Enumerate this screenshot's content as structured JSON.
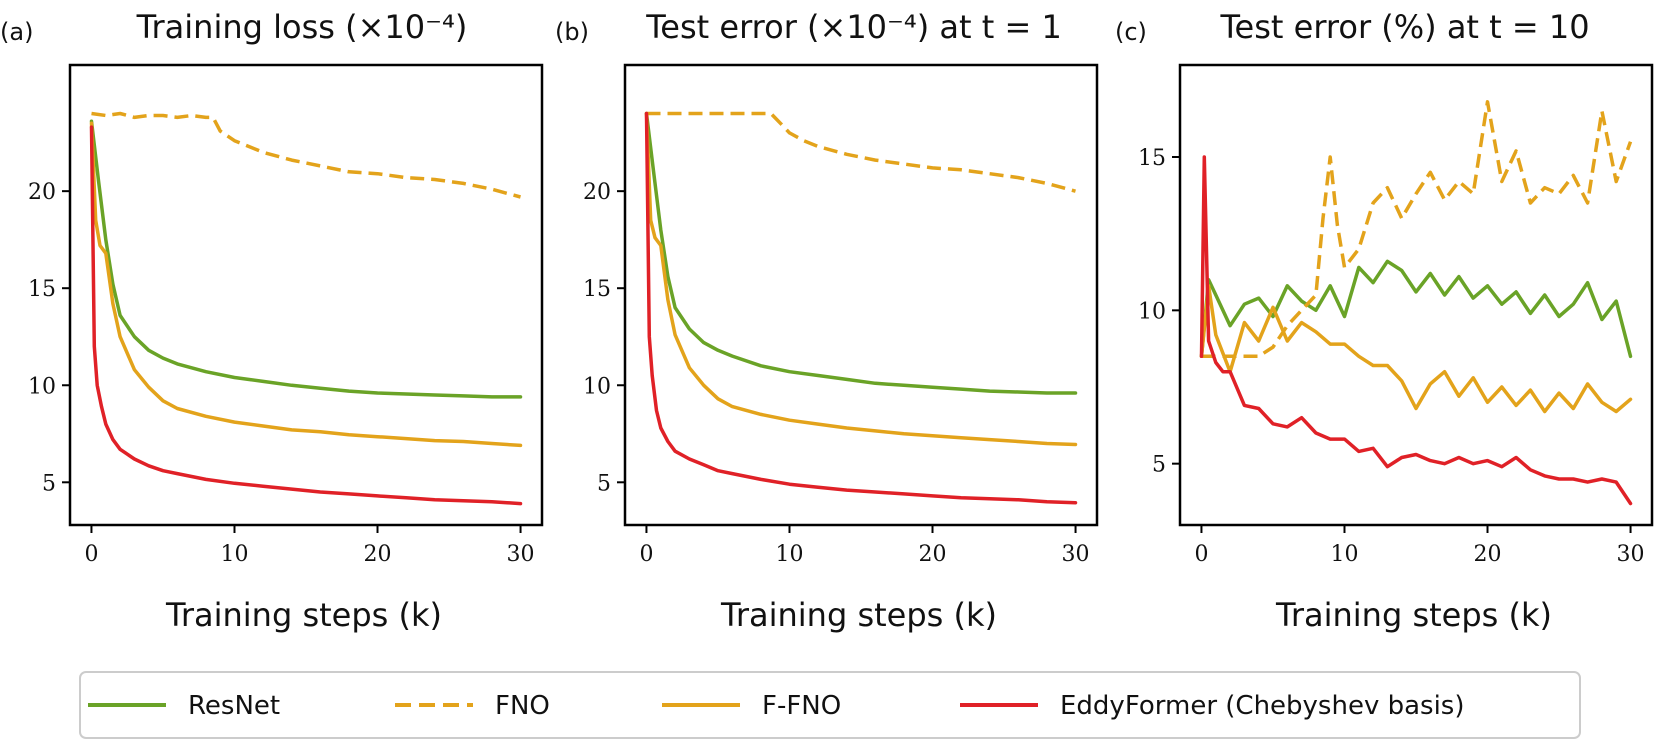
{
  "chart_data": [
    {
      "type": "line",
      "panel_tag": "(a)",
      "title": "Training loss (×10⁻⁴)",
      "xlabel": "Training steps (k)",
      "ylabel": "",
      "xlim": [
        -1.5,
        31.5
      ],
      "ylim": [
        2.8,
        26.5
      ],
      "xticks": [
        0,
        10,
        20,
        30
      ],
      "yticks": [
        5,
        10,
        15,
        20
      ],
      "series": [
        {
          "name": "ResNet",
          "x": [
            0,
            0.5,
            1,
            1.5,
            2,
            3,
            4,
            5,
            6,
            8,
            10,
            12,
            14,
            16,
            18,
            20,
            22,
            24,
            26,
            28,
            30
          ],
          "values": [
            23.6,
            20.5,
            17.5,
            15.2,
            13.6,
            12.5,
            11.8,
            11.4,
            11.1,
            10.7,
            10.4,
            10.2,
            10.0,
            9.85,
            9.7,
            9.6,
            9.55,
            9.5,
            9.45,
            9.4,
            9.4
          ]
        },
        {
          "name": "FNO",
          "x": [
            0,
            1,
            2,
            3,
            4,
            5,
            6,
            7,
            8,
            8.5,
            9,
            10,
            12,
            14,
            16,
            18,
            20,
            22,
            24,
            26,
            28,
            30
          ],
          "values": [
            24.0,
            23.9,
            24.0,
            23.8,
            23.9,
            23.9,
            23.8,
            23.9,
            23.8,
            23.8,
            23.1,
            22.6,
            22.0,
            21.6,
            21.3,
            21.0,
            20.9,
            20.7,
            20.6,
            20.4,
            20.1,
            19.7
          ]
        },
        {
          "name": "F-FNO",
          "x": [
            0,
            0.3,
            0.6,
            1,
            1.5,
            2,
            3,
            4,
            5,
            6,
            8,
            10,
            12,
            14,
            16,
            18,
            20,
            22,
            24,
            26,
            28,
            30
          ],
          "values": [
            23.5,
            18.5,
            17.2,
            16.8,
            14.2,
            12.5,
            10.8,
            9.9,
            9.2,
            8.8,
            8.4,
            8.1,
            7.9,
            7.7,
            7.6,
            7.45,
            7.35,
            7.25,
            7.15,
            7.1,
            7.0,
            6.9
          ]
        },
        {
          "name": "EddyFormer (Chebyshev basis)",
          "x": [
            0,
            0.2,
            0.4,
            0.7,
            1,
            1.5,
            2,
            3,
            4,
            5,
            6,
            8,
            10,
            12,
            14,
            16,
            18,
            20,
            22,
            24,
            26,
            28,
            30
          ],
          "values": [
            23.3,
            12.0,
            10.0,
            8.9,
            8.0,
            7.2,
            6.7,
            6.2,
            5.85,
            5.6,
            5.45,
            5.15,
            4.95,
            4.8,
            4.65,
            4.5,
            4.4,
            4.3,
            4.2,
            4.1,
            4.05,
            4.0,
            3.9
          ]
        }
      ]
    },
    {
      "type": "line",
      "panel_tag": "(b)",
      "title": "Test error (×10⁻⁴) at t = 1",
      "xlabel": "Training steps (k)",
      "ylabel": "",
      "xlim": [
        -1.5,
        31.5
      ],
      "ylim": [
        2.8,
        26.5
      ],
      "xticks": [
        0,
        10,
        20,
        30
      ],
      "yticks": [
        5,
        10,
        15,
        20
      ],
      "series": [
        {
          "name": "ResNet",
          "x": [
            0,
            0.5,
            1,
            1.5,
            2,
            3,
            4,
            5,
            6,
            8,
            10,
            12,
            14,
            16,
            18,
            20,
            22,
            24,
            26,
            28,
            30
          ],
          "values": [
            24.0,
            21.0,
            18.0,
            15.6,
            14.0,
            12.9,
            12.2,
            11.8,
            11.5,
            11.0,
            10.7,
            10.5,
            10.3,
            10.1,
            10.0,
            9.9,
            9.8,
            9.7,
            9.65,
            9.6,
            9.6
          ]
        },
        {
          "name": "FNO",
          "x": [
            0,
            1,
            2,
            4,
            6,
            8,
            8.7,
            9.5,
            10,
            11,
            12,
            14,
            16,
            18,
            20,
            22,
            24,
            26,
            28,
            30
          ],
          "values": [
            24.0,
            24.0,
            24.0,
            24.0,
            24.0,
            24.0,
            24.0,
            23.4,
            23.0,
            22.6,
            22.3,
            21.9,
            21.6,
            21.4,
            21.2,
            21.1,
            20.9,
            20.7,
            20.4,
            20.0
          ]
        },
        {
          "name": "F-FNO",
          "x": [
            0,
            0.3,
            0.6,
            1,
            1.5,
            2,
            3,
            4,
            5,
            6,
            8,
            10,
            12,
            14,
            16,
            18,
            20,
            22,
            24,
            26,
            28,
            30
          ],
          "values": [
            24.0,
            18.5,
            17.6,
            17.2,
            14.4,
            12.6,
            10.9,
            10.0,
            9.3,
            8.9,
            8.5,
            8.2,
            8.0,
            7.8,
            7.65,
            7.5,
            7.4,
            7.3,
            7.2,
            7.1,
            7.0,
            6.95
          ]
        },
        {
          "name": "EddyFormer (Chebyshev basis)",
          "x": [
            0,
            0.2,
            0.4,
            0.7,
            1,
            1.5,
            2,
            3,
            4,
            5,
            6,
            8,
            10,
            12,
            14,
            16,
            18,
            20,
            22,
            24,
            26,
            28,
            30
          ],
          "values": [
            24.0,
            12.5,
            10.5,
            8.7,
            7.8,
            7.1,
            6.6,
            6.2,
            5.9,
            5.6,
            5.45,
            5.15,
            4.9,
            4.75,
            4.6,
            4.5,
            4.4,
            4.3,
            4.2,
            4.15,
            4.1,
            4.0,
            3.95
          ]
        }
      ]
    },
    {
      "type": "line",
      "panel_tag": "(c)",
      "title": "Test error (%) at t = 10",
      "xlabel": "Training steps (k)",
      "ylabel": "",
      "xlim": [
        -1.5,
        31.5
      ],
      "ylim": [
        3.0,
        18.0
      ],
      "xticks": [
        0,
        10,
        20,
        30
      ],
      "yticks": [
        5,
        10,
        15
      ],
      "series": [
        {
          "name": "ResNet",
          "x": [
            0,
            0.5,
            1,
            2,
            3,
            4,
            5,
            6,
            7,
            8,
            9,
            10,
            11,
            12,
            13,
            14,
            15,
            16,
            17,
            18,
            19,
            20,
            21,
            22,
            23,
            24,
            25,
            26,
            27,
            28,
            29,
            30
          ],
          "values": [
            8.5,
            11.0,
            10.5,
            9.5,
            10.2,
            10.4,
            9.8,
            10.8,
            10.3,
            10.0,
            10.8,
            9.8,
            11.4,
            10.9,
            11.6,
            11.3,
            10.6,
            11.2,
            10.5,
            11.1,
            10.4,
            10.8,
            10.2,
            10.6,
            9.9,
            10.5,
            9.8,
            10.2,
            10.9,
            9.7,
            10.3,
            8.5
          ]
        },
        {
          "name": "FNO",
          "x": [
            0,
            1,
            2,
            3,
            4,
            5,
            6,
            7,
            8,
            8.5,
            9,
            9.5,
            10,
            11,
            12,
            13,
            14,
            15,
            16,
            17,
            18,
            19,
            20,
            21,
            22,
            23,
            24,
            25,
            26,
            27,
            28,
            29,
            30
          ],
          "values": [
            8.5,
            8.5,
            8.5,
            8.5,
            8.5,
            8.8,
            9.5,
            10.0,
            10.5,
            13.0,
            15.0,
            12.8,
            11.4,
            12.0,
            13.5,
            14.0,
            13.0,
            13.8,
            14.5,
            13.6,
            14.2,
            13.8,
            16.8,
            14.2,
            15.2,
            13.5,
            14.0,
            13.8,
            14.4,
            13.5,
            16.5,
            14.2,
            15.5
          ]
        },
        {
          "name": "F-FNO",
          "x": [
            0,
            0.5,
            1,
            2,
            3,
            4,
            5,
            6,
            7,
            8,
            9,
            10,
            11,
            12,
            13,
            14,
            15,
            16,
            17,
            18,
            19,
            20,
            21,
            22,
            23,
            24,
            25,
            26,
            27,
            28,
            29,
            30
          ],
          "values": [
            8.5,
            10.8,
            9.2,
            8.0,
            9.6,
            9.0,
            10.1,
            9.0,
            9.6,
            9.3,
            8.9,
            8.9,
            8.5,
            8.2,
            8.2,
            7.7,
            6.8,
            7.6,
            8.0,
            7.2,
            7.8,
            7.0,
            7.5,
            6.9,
            7.4,
            6.7,
            7.3,
            6.8,
            7.6,
            7.0,
            6.7,
            7.1
          ]
        },
        {
          "name": "EddyFormer (Chebyshev basis)",
          "x": [
            0,
            0.2,
            0.5,
            1,
            1.5,
            2,
            3,
            4,
            5,
            6,
            7,
            8,
            9,
            10,
            11,
            12,
            13,
            14,
            15,
            16,
            17,
            18,
            19,
            20,
            21,
            22,
            23,
            24,
            25,
            26,
            27,
            28,
            29,
            30
          ],
          "values": [
            8.5,
            15.0,
            9.0,
            8.3,
            8.0,
            8.0,
            6.9,
            6.8,
            6.3,
            6.2,
            6.5,
            6.0,
            5.8,
            5.8,
            5.4,
            5.5,
            4.9,
            5.2,
            5.3,
            5.1,
            5.0,
            5.2,
            5.0,
            5.1,
            4.9,
            5.2,
            4.8,
            4.6,
            4.5,
            4.5,
            4.4,
            4.5,
            4.4,
            3.7
          ]
        }
      ]
    }
  ],
  "legend": [
    {
      "label": "ResNet",
      "color": "#6aa327",
      "style": "solid"
    },
    {
      "label": "FNO",
      "color": "#e3a31b",
      "style": "dashed"
    },
    {
      "label": "F-FNO",
      "color": "#e3a31b",
      "style": "solid"
    },
    {
      "label": "EddyFormer (Chebyshev basis)",
      "color": "#e02127",
      "style": "solid"
    }
  ],
  "colors": {
    "ResNet": "#6aa327",
    "FNO": "#e3a31b",
    "F-FNO": "#e3a31b",
    "EddyFormer (Chebyshev basis)": "#e02127"
  }
}
